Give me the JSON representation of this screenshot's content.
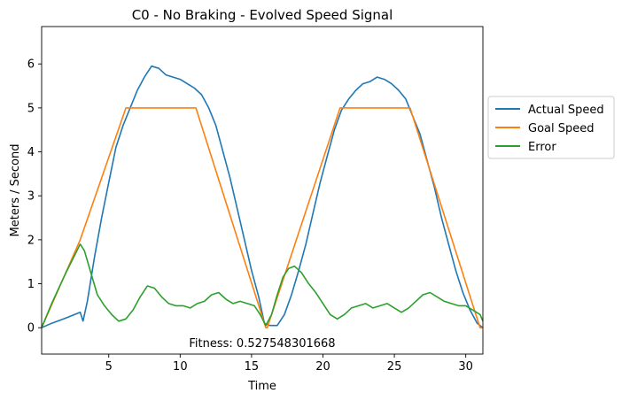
{
  "chart_data": {
    "type": "line",
    "title": "C0 - No Braking - Evolved  Speed Signal",
    "xlabel": "Time",
    "ylabel": "Meters / Second",
    "xlim": [
      0.3,
      31.2
    ],
    "ylim": [
      -0.6,
      6.85
    ],
    "xticks": [
      5,
      10,
      15,
      20,
      25,
      30
    ],
    "yticks": [
      0,
      1,
      2,
      3,
      4,
      5,
      6
    ],
    "grid": false,
    "legend_position": "outside-right",
    "annotation": "Fitness: 0.527548301668",
    "series": [
      {
        "name": "Actual Speed",
        "color": "#1f77b4",
        "x": [
          0.3,
          1.0,
          2.0,
          3.0,
          3.2,
          3.5,
          4.0,
          4.5,
          5.0,
          5.5,
          6.0,
          6.5,
          7.0,
          7.5,
          8.0,
          8.5,
          9.0,
          9.5,
          10.0,
          10.5,
          11.0,
          11.5,
          12.0,
          12.5,
          13.0,
          13.5,
          14.0,
          14.5,
          15.0,
          15.5,
          15.9,
          16.3,
          16.8,
          17.3,
          17.8,
          18.3,
          18.8,
          19.3,
          19.8,
          20.3,
          20.8,
          21.3,
          21.8,
          22.3,
          22.8,
          23.3,
          23.8,
          24.3,
          24.8,
          25.3,
          25.8,
          26.3,
          26.8,
          27.3,
          27.8,
          28.3,
          28.8,
          29.3,
          29.8,
          30.3,
          30.8,
          31.2
        ],
        "y": [
          0.0,
          0.1,
          0.22,
          0.35,
          0.15,
          0.6,
          1.6,
          2.5,
          3.3,
          4.1,
          4.6,
          5.0,
          5.4,
          5.7,
          5.95,
          5.9,
          5.75,
          5.7,
          5.65,
          5.55,
          5.45,
          5.3,
          5.0,
          4.6,
          4.0,
          3.4,
          2.7,
          2.0,
          1.3,
          0.7,
          0.1,
          0.05,
          0.05,
          0.3,
          0.75,
          1.3,
          1.9,
          2.6,
          3.3,
          3.9,
          4.5,
          4.95,
          5.2,
          5.4,
          5.55,
          5.6,
          5.7,
          5.65,
          5.55,
          5.4,
          5.2,
          4.8,
          4.4,
          3.8,
          3.2,
          2.5,
          1.9,
          1.3,
          0.8,
          0.4,
          0.1,
          0.0
        ]
      },
      {
        "name": "Goal Speed",
        "color": "#ff7f0e",
        "x": [
          0.3,
          3.0,
          6.2,
          11.1,
          16.0,
          16.1,
          21.2,
          26.1,
          31.0,
          31.2
        ],
        "y": [
          0.0,
          2.0,
          5.0,
          5.0,
          0.0,
          0.0,
          5.0,
          5.0,
          0.0,
          0.0
        ]
      },
      {
        "name": "Error",
        "color": "#2ca02c",
        "x": [
          0.3,
          1.0,
          2.0,
          3.0,
          3.3,
          3.7,
          4.2,
          4.7,
          5.2,
          5.7,
          6.2,
          6.7,
          7.2,
          7.7,
          8.2,
          8.7,
          9.2,
          9.7,
          10.2,
          10.7,
          11.2,
          11.7,
          12.2,
          12.7,
          13.2,
          13.7,
          14.2,
          14.7,
          15.2,
          15.6,
          16.0,
          16.4,
          16.8,
          17.2,
          17.6,
          18.0,
          18.5,
          19.0,
          19.5,
          20.0,
          20.5,
          21.0,
          21.5,
          22.0,
          22.5,
          23.0,
          23.5,
          24.0,
          24.5,
          25.0,
          25.5,
          26.0,
          26.5,
          27.0,
          27.5,
          28.0,
          28.5,
          29.0,
          29.5,
          30.0,
          30.5,
          31.0,
          31.2
        ],
        "y": [
          0.0,
          0.55,
          1.25,
          1.9,
          1.75,
          1.3,
          0.75,
          0.5,
          0.3,
          0.15,
          0.2,
          0.4,
          0.7,
          0.95,
          0.9,
          0.7,
          0.55,
          0.5,
          0.5,
          0.45,
          0.55,
          0.6,
          0.75,
          0.8,
          0.65,
          0.55,
          0.6,
          0.55,
          0.5,
          0.3,
          0.05,
          0.3,
          0.75,
          1.15,
          1.35,
          1.4,
          1.25,
          1.0,
          0.8,
          0.55,
          0.3,
          0.2,
          0.3,
          0.45,
          0.5,
          0.55,
          0.45,
          0.5,
          0.55,
          0.45,
          0.35,
          0.45,
          0.6,
          0.75,
          0.8,
          0.7,
          0.6,
          0.55,
          0.5,
          0.5,
          0.4,
          0.3,
          0.15
        ]
      }
    ]
  }
}
